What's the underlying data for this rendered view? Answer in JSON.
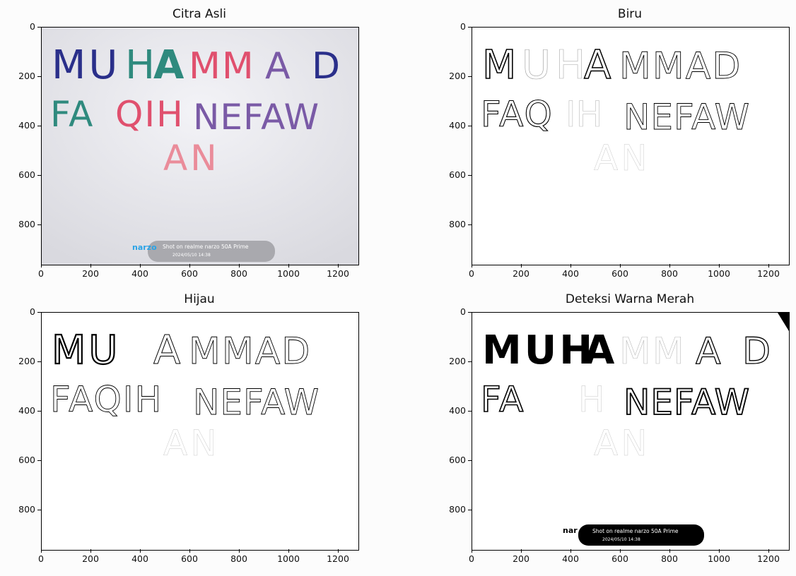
{
  "figure": {
    "panels": [
      {
        "id": "asli",
        "title": "Citra Asli"
      },
      {
        "id": "biru",
        "title": "Biru"
      },
      {
        "id": "hijau",
        "title": "Hijau"
      },
      {
        "id": "merah",
        "title": "Deteksi Warna Merah"
      }
    ],
    "x_ticks": [
      "0",
      "200",
      "400",
      "600",
      "800",
      "1000",
      "1200"
    ],
    "y_ticks": [
      "0",
      "200",
      "400",
      "600",
      "800"
    ],
    "image_text": {
      "line1": "MUHAMMAD",
      "line2": "FAQIH NEFAW",
      "line3": "AN"
    },
    "watermark": {
      "brand": "narzo",
      "brand_short": "nar",
      "text": "Shot on realme narzo 50A Prime",
      "date": "2024/05/10  14:38"
    },
    "colors": {
      "navy": "#2a2f8a",
      "teal": "#2f8a7e",
      "pink": "#e0506e",
      "purple": "#7a5aa6",
      "light_pink": "#ea8c9a",
      "paper": "#e9e9ee",
      "narzo_blue": "#2aa3e6"
    }
  }
}
